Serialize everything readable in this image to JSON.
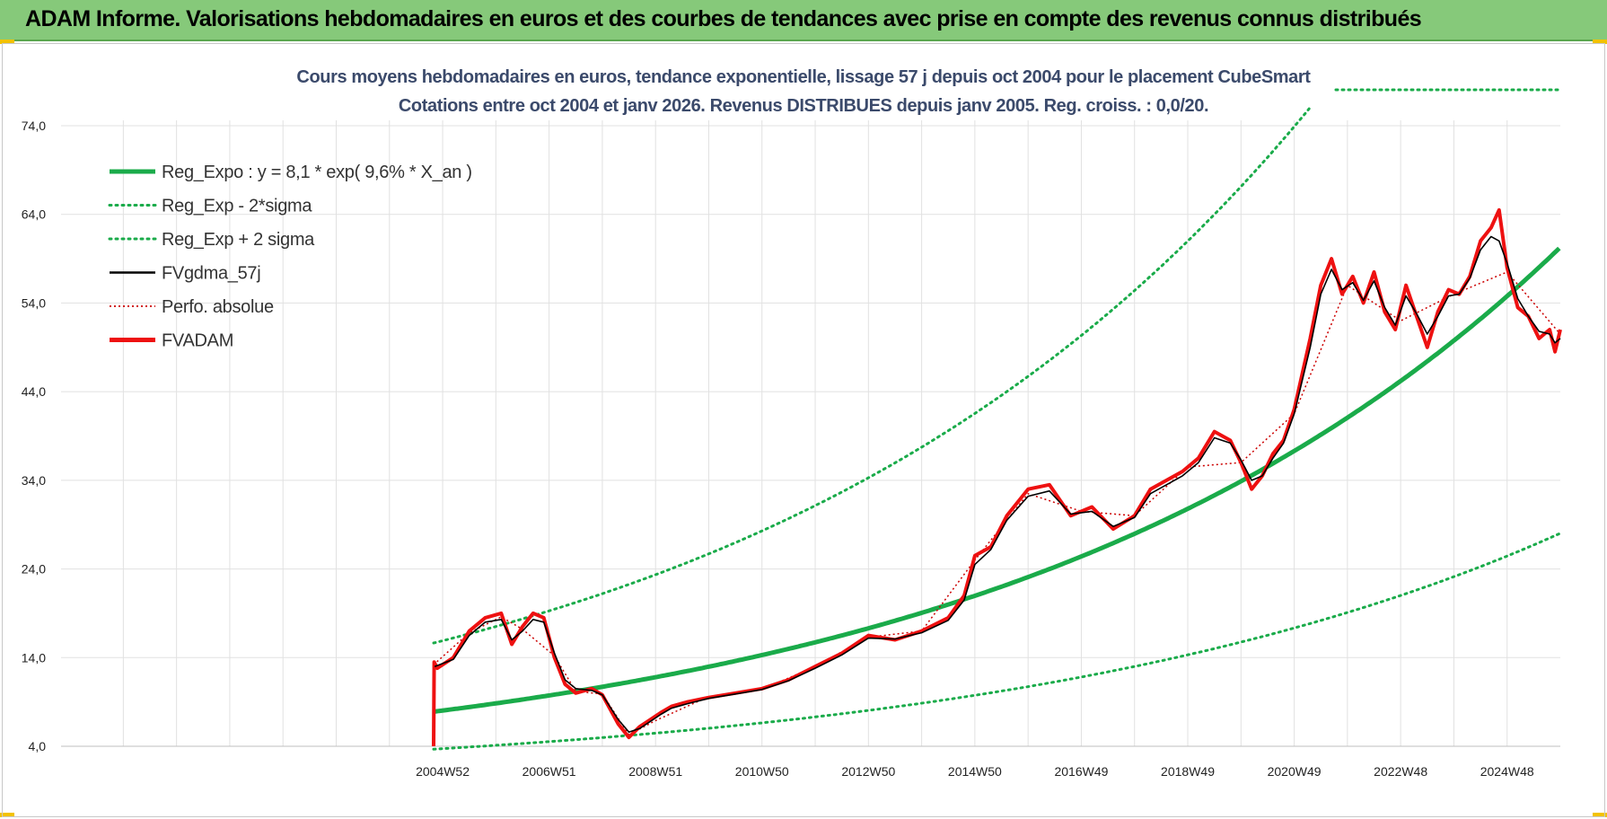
{
  "header": {
    "title": "ADAM Informe. Valorisations hebdomadaires en euros et des courbes de tendances avec prise en compte des revenus connus distribués"
  },
  "colors": {
    "header_bg": "#86c97a",
    "trend_green": "#1aab4a",
    "gdma_black": "#000000",
    "fvadam_red": "#ee1111",
    "perfo_red": "#cc0000",
    "grid": "#e1e1e1"
  },
  "chart_data": {
    "type": "line",
    "title": "Cours moyens hebdomadaires en euros, tendance exponentielle, lissage 57 j depuis oct 2004 pour le placement CubeSmart",
    "subtitle": "Cotations entre oct 2004 et janv 2026. Revenus DISTRIBUES depuis janv 2005. Reg. croiss. : 0,0/20.",
    "xlabel": "",
    "ylabel": "",
    "xlim": [
      1997.83,
      2026.0
    ],
    "ylim": [
      4.0,
      74.0
    ],
    "y_ticks": [
      "4,0",
      "14,0",
      "24,0",
      "34,0",
      "44,0",
      "54,0",
      "64,0",
      "74,0"
    ],
    "x_ticks": [
      {
        "label": "2004W52",
        "x": 2005.0
      },
      {
        "label": "2006W51",
        "x": 2007.0
      },
      {
        "label": "2008W51",
        "x": 2009.0
      },
      {
        "label": "2010W50",
        "x": 2011.0
      },
      {
        "label": "2012W50",
        "x": 2013.0
      },
      {
        "label": "2014W50",
        "x": 2015.0
      },
      {
        "label": "2016W49",
        "x": 2017.0
      },
      {
        "label": "2018W49",
        "x": 2019.0
      },
      {
        "label": "2020W49",
        "x": 2021.0
      },
      {
        "label": "2022W48",
        "x": 2023.0
      },
      {
        "label": "2024W48",
        "x": 2025.0
      }
    ],
    "grid": true,
    "legend_position": "top-left",
    "trend": {
      "a": 8.1,
      "rate": 0.096,
      "x_start": 2004.83,
      "x_end": 2026.0,
      "sigma_factor": 2.13
    },
    "legend": [
      {
        "key": "reg_expo",
        "label": "Reg_Expo : y = 8,1 * exp( 9,6% *  X_an )",
        "color": "#1aab4a",
        "style": "thick"
      },
      {
        "key": "reg_minus",
        "label": "Reg_Exp - 2*sigma",
        "color": "#1aab4a",
        "style": "dotted"
      },
      {
        "key": "reg_plus",
        "label": "Reg_Exp + 2 sigma",
        "color": "#1aab4a",
        "style": "dotted"
      },
      {
        "key": "gdma",
        "label": "FVgdma_57j",
        "color": "#000000",
        "style": "solid"
      },
      {
        "key": "perfo",
        "label": "Perfo. absolue",
        "color": "#cc0000",
        "style": "dotted-thin"
      },
      {
        "key": "fvadam",
        "label": "FVADAM",
        "color": "#ee1111",
        "style": "thick"
      }
    ],
    "series": [
      {
        "name": "FVADAM",
        "x": [
          2004.83,
          2004.84,
          2004.9,
          2005.2,
          2005.5,
          2005.8,
          2006.1,
          2006.3,
          2006.5,
          2006.7,
          2006.9,
          2007.1,
          2007.3,
          2007.5,
          2007.8,
          2008.0,
          2008.3,
          2008.5,
          2008.7,
          2008.9,
          2009.1,
          2009.3,
          2009.6,
          2010.0,
          2010.5,
          2011.0,
          2011.5,
          2012.0,
          2012.5,
          2013.0,
          2013.5,
          2014.0,
          2014.5,
          2014.8,
          2015.0,
          2015.3,
          2015.6,
          2016.0,
          2016.4,
          2016.8,
          2017.2,
          2017.6,
          2018.0,
          2018.3,
          2018.6,
          2018.9,
          2019.2,
          2019.5,
          2019.8,
          2020.0,
          2020.2,
          2020.4,
          2020.6,
          2020.8,
          2021.0,
          2021.3,
          2021.5,
          2021.7,
          2021.9,
          2022.1,
          2022.3,
          2022.5,
          2022.7,
          2022.9,
          2023.1,
          2023.3,
          2023.5,
          2023.7,
          2023.9,
          2024.1,
          2024.3,
          2024.5,
          2024.7,
          2024.85,
          2025.0,
          2025.2,
          2025.4,
          2025.6,
          2025.8,
          2025.9,
          2026.0
        ],
        "values": [
          4.0,
          13.5,
          12.8,
          14.0,
          17.0,
          18.5,
          19.0,
          15.5,
          17.5,
          19.0,
          18.5,
          14.0,
          11.0,
          10.0,
          10.5,
          9.8,
          6.5,
          5.0,
          6.2,
          7.0,
          7.8,
          8.5,
          9.0,
          9.5,
          10.0,
          10.5,
          11.5,
          13.0,
          14.5,
          16.5,
          16.0,
          17.0,
          18.5,
          21.0,
          25.5,
          26.5,
          30.0,
          33.0,
          33.5,
          30.0,
          31.0,
          28.5,
          30.0,
          33.0,
          34.0,
          35.0,
          36.5,
          39.5,
          38.5,
          36.0,
          33.0,
          34.5,
          37.0,
          38.5,
          42.0,
          50.0,
          56.0,
          59.0,
          55.0,
          57.0,
          54.0,
          57.5,
          53.0,
          51.0,
          56.0,
          52.5,
          49.0,
          53.0,
          55.5,
          55.0,
          57.0,
          61.0,
          62.5,
          64.5,
          58.0,
          53.5,
          52.5,
          50.0,
          51.0,
          48.5,
          51.0
        ]
      },
      {
        "name": "FVgdma_57j",
        "x": [
          2004.85,
          2005.2,
          2005.5,
          2005.8,
          2006.1,
          2006.3,
          2006.5,
          2006.7,
          2006.9,
          2007.1,
          2007.3,
          2007.5,
          2007.8,
          2008.0,
          2008.3,
          2008.5,
          2008.7,
          2008.9,
          2009.1,
          2009.3,
          2009.6,
          2010.0,
          2010.5,
          2011.0,
          2011.5,
          2012.0,
          2012.5,
          2013.0,
          2013.5,
          2014.0,
          2014.5,
          2014.8,
          2015.0,
          2015.3,
          2015.6,
          2016.0,
          2016.4,
          2016.8,
          2017.2,
          2017.6,
          2018.0,
          2018.3,
          2018.6,
          2018.9,
          2019.2,
          2019.5,
          2019.8,
          2020.0,
          2020.2,
          2020.4,
          2020.6,
          2020.8,
          2021.0,
          2021.3,
          2021.5,
          2021.7,
          2021.9,
          2022.1,
          2022.3,
          2022.5,
          2022.7,
          2022.9,
          2023.1,
          2023.3,
          2023.5,
          2023.7,
          2023.9,
          2024.1,
          2024.3,
          2024.5,
          2024.7,
          2024.85,
          2025.0,
          2025.2,
          2025.4,
          2025.6,
          2025.8,
          2025.9,
          2026.0
        ],
        "values": [
          13.0,
          13.8,
          16.5,
          18.0,
          18.3,
          16.0,
          17.0,
          18.3,
          18.0,
          14.5,
          11.5,
          10.5,
          10.3,
          9.8,
          7.0,
          5.6,
          6.0,
          6.8,
          7.6,
          8.3,
          8.8,
          9.4,
          9.9,
          10.4,
          11.4,
          12.8,
          14.3,
          16.2,
          16.1,
          16.8,
          18.2,
          20.5,
          24.5,
          26.2,
          29.5,
          32.2,
          32.8,
          30.2,
          30.5,
          28.8,
          29.8,
          32.5,
          33.5,
          34.5,
          36.0,
          38.8,
          38.2,
          36.3,
          34.0,
          34.5,
          36.5,
          38.2,
          41.5,
          49.0,
          55.0,
          57.8,
          55.5,
          56.3,
          54.3,
          56.5,
          53.5,
          51.5,
          54.8,
          52.8,
          50.5,
          52.5,
          54.8,
          55.0,
          56.8,
          60.0,
          61.5,
          61.0,
          58.5,
          54.5,
          52.5,
          50.8,
          50.5,
          49.5,
          50.0
        ]
      },
      {
        "name": "Perfo. absolue",
        "x": [
          2004.83,
          2005.5,
          2006.1,
          2006.5,
          2007.1,
          2007.5,
          2008.0,
          2008.5,
          2009.0,
          2010.0,
          2011.0,
          2012.0,
          2013.0,
          2014.0,
          2015.0,
          2016.0,
          2017.0,
          2018.0,
          2019.0,
          2020.0,
          2021.0,
          2022.0,
          2023.0,
          2024.0,
          2025.0,
          2026.0
        ],
        "values": [
          13.2,
          16.8,
          18.6,
          17.2,
          14.2,
          10.2,
          9.9,
          5.3,
          6.9,
          9.6,
          10.4,
          13.0,
          16.3,
          17.0,
          25.0,
          32.5,
          30.5,
          30.0,
          35.5,
          36.0,
          41.5,
          56.0,
          52.0,
          55.0,
          57.5,
          50.5
        ]
      }
    ]
  }
}
